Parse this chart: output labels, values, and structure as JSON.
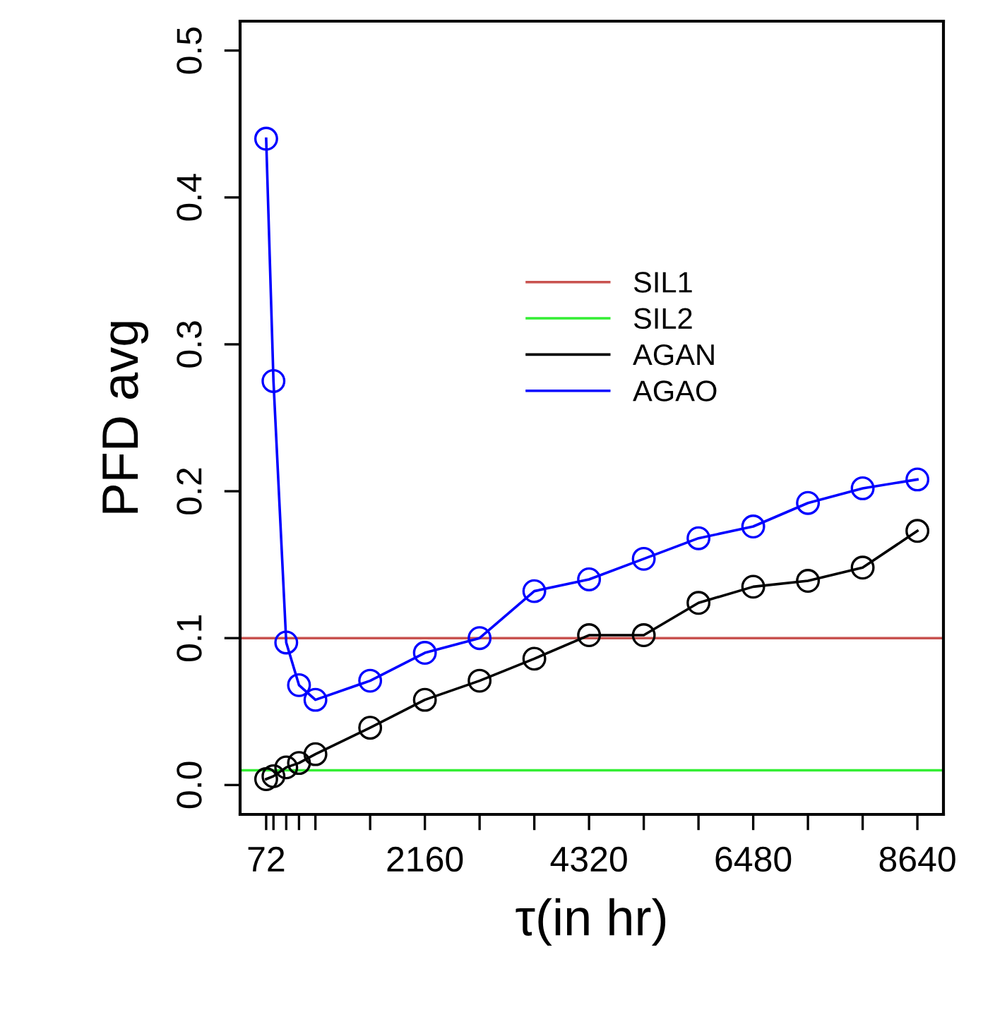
{
  "chart_data": {
    "type": "line",
    "xlabel": "τ(in hr)",
    "ylabel": "PFD avg",
    "x": [
      72,
      168,
      336,
      504,
      720,
      1440,
      2160,
      2880,
      3600,
      4320,
      5040,
      5760,
      6480,
      7200,
      7920,
      8640
    ],
    "series": [
      {
        "name": "AGAN",
        "color": "#000000",
        "values": [
          0.004,
          0.006,
          0.012,
          0.015,
          0.021,
          0.039,
          0.058,
          0.071,
          0.086,
          0.102,
          0.102,
          0.124,
          0.135,
          0.139,
          0.148,
          0.173
        ]
      },
      {
        "name": "AGAO",
        "color": "#0000ff",
        "values": [
          0.44,
          0.275,
          0.097,
          0.068,
          0.058,
          0.071,
          0.09,
          0.1,
          0.132,
          0.14,
          0.154,
          0.168,
          0.176,
          0.192,
          0.202,
          0.208
        ]
      }
    ],
    "ref_lines": [
      {
        "axis": "y",
        "value": 0.1,
        "label": "SIL1",
        "color": "#c8524f"
      },
      {
        "axis": "y",
        "value": 0.01,
        "label": "SIL2",
        "color": "#33ee33"
      }
    ],
    "xlim": [
      -271,
      8983
    ],
    "ylim": [
      -0.02,
      0.52
    ],
    "xticks": [
      72,
      {
        "value": 168,
        "label": null
      },
      {
        "value": 336,
        "label": null
      },
      {
        "value": 504,
        "label": null
      },
      {
        "value": 720,
        "label": null
      },
      {
        "value": 1440,
        "label": null
      },
      2160,
      {
        "value": 2880,
        "label": null
      },
      {
        "value": 3600,
        "label": null
      },
      4320,
      {
        "value": 5040,
        "label": null
      },
      {
        "value": 5760,
        "label": null
      },
      6480,
      {
        "value": 7200,
        "label": null
      },
      {
        "value": 7920,
        "label": null
      },
      8640
    ],
    "yticks": [
      {
        "value": 0,
        "label": "0.0"
      },
      0.1,
      0.2,
      0.3,
      0.4,
      0.5
    ],
    "marker": "circle",
    "line_style": "solid",
    "grid": false,
    "legend": "center"
  }
}
